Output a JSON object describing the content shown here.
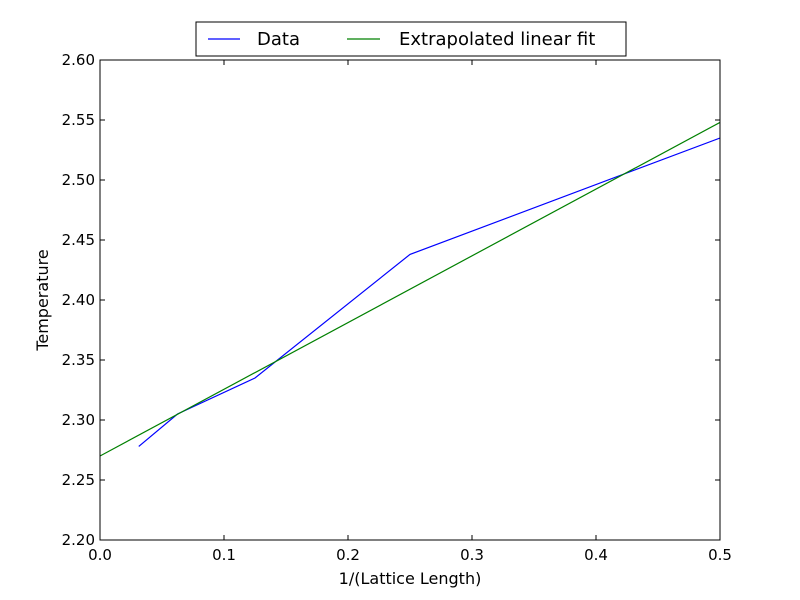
{
  "chart_data": {
    "type": "line",
    "title": "",
    "xlabel": "1/(Lattice Length)",
    "ylabel": "Temperature",
    "xlim": [
      0.0,
      0.5
    ],
    "ylim": [
      2.2,
      2.6
    ],
    "x_ticks": [
      0.0,
      0.1,
      0.2,
      0.3,
      0.4,
      0.5
    ],
    "x_tick_labels": [
      "0.0",
      "0.1",
      "0.2",
      "0.3",
      "0.4",
      "0.5"
    ],
    "y_ticks": [
      2.2,
      2.25,
      2.3,
      2.35,
      2.4,
      2.45,
      2.5,
      2.55,
      2.6
    ],
    "y_tick_labels": [
      "2.20",
      "2.25",
      "2.30",
      "2.35",
      "2.40",
      "2.45",
      "2.50",
      "2.55",
      "2.60"
    ],
    "grid": false,
    "legend": {
      "position": "top-center, above plot",
      "columns": 2
    },
    "series": [
      {
        "name": "Data",
        "color": "#0000ff",
        "x": [
          0.03125,
          0.0625,
          0.125,
          0.25,
          0.5
        ],
        "y": [
          2.278,
          2.305,
          2.335,
          2.438,
          2.535
        ]
      },
      {
        "name": "Extrapolated linear fit",
        "color": "#008000",
        "x": [
          0.0,
          0.5
        ],
        "y": [
          2.27,
          2.548
        ]
      }
    ]
  }
}
